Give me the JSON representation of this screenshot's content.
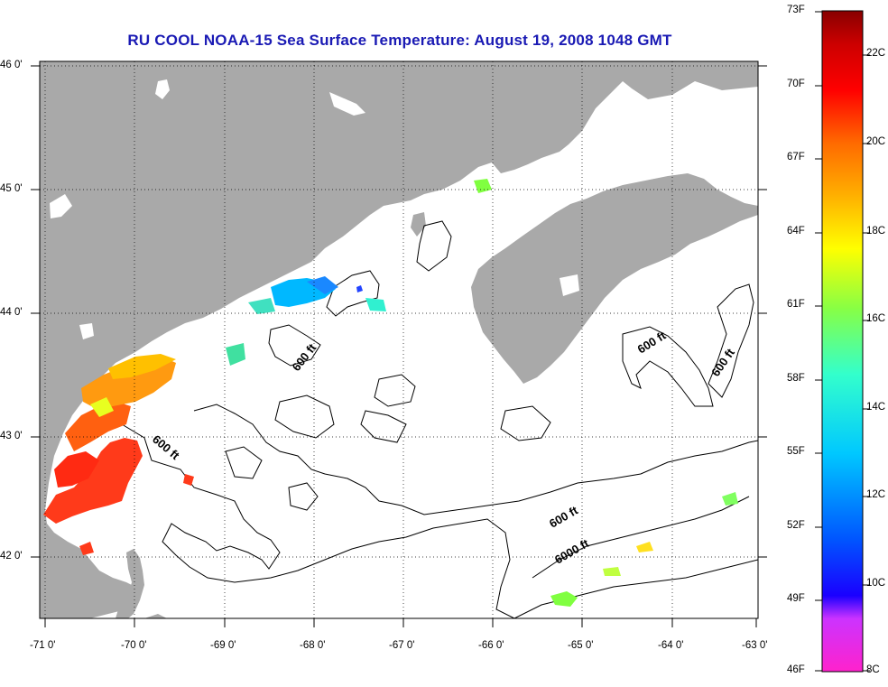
{
  "title": "RU COOL  NOAA-15  Sea Surface Temperature:  August 19, 2008 1048 GMT",
  "x_ticks": [
    "-71 0'",
    "-70 0'",
    "-69 0'",
    "-68 0'",
    "-67 0'",
    "-66 0'",
    "-65 0'",
    "-64 0'",
    "-63 0'"
  ],
  "y_ticks": [
    "46 0'",
    "45 0'",
    "44 0'",
    "43 0'",
    "42 0'"
  ],
  "contour_labels": [
    "600 ft",
    "600 ft",
    "600 ft",
    "600 ft",
    "600 ft",
    "6000 ft"
  ],
  "colorbar": {
    "fahrenheit": [
      "73F",
      "70F",
      "67F",
      "64F",
      "61F",
      "58F",
      "55F",
      "52F",
      "49F",
      "46F"
    ],
    "celsius": [
      "22C",
      "20C",
      "18C",
      "16C",
      "14C",
      "12C",
      "10C",
      "8C"
    ]
  },
  "colors": {
    "title": "#1a1ab4",
    "land": "#a9a9a9",
    "water": "#ffffff"
  }
}
